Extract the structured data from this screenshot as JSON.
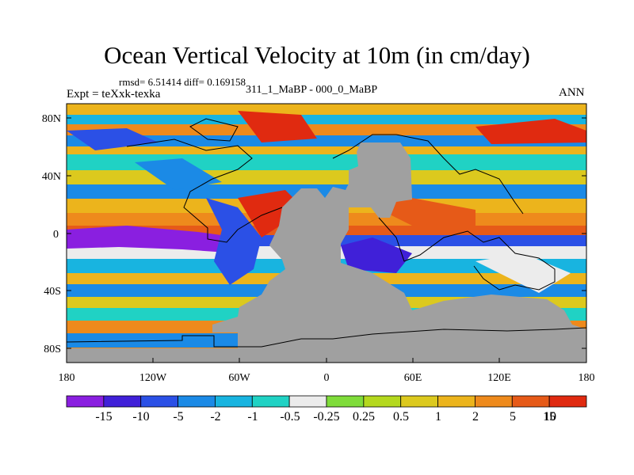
{
  "figure": {
    "title": "Ocean Vertical Velocity at 10m (in cm/day)",
    "stats": "rmsd= 6.51414 diff= 0.169158",
    "left_label": "Expt = teXxk-texka",
    "center_label": "311_1_MaBP - 000_0_MaBP",
    "right_label": "ANN"
  },
  "map": {
    "projection": "cylindrical-equidistant",
    "lon_range": [
      -180,
      180
    ],
    "lat_range": [
      -90,
      90
    ],
    "x_tick_labels": [
      "180",
      "120W",
      "60W",
      "0",
      "60E",
      "120E",
      "180"
    ],
    "y_tick_labels": [
      "80N",
      "40N",
      "0",
      "40S",
      "80S"
    ],
    "land_fill_color": "#a0a0a0",
    "coastline_color": "#000000"
  },
  "colorbar": {
    "orientation": "horizontal",
    "colors": [
      "#8a1fe0",
      "#4020d8",
      "#2b50e6",
      "#1b8ae6",
      "#18b4e0",
      "#20d2c4",
      "#ececec",
      "#7fdc3a",
      "#b4d81e",
      "#dcc91e",
      "#ecb41c",
      "#ee8a1c",
      "#e65a18",
      "#e02a10"
    ],
    "labels": [
      "-15",
      "-10",
      "-5",
      "-2",
      "-1",
      "-0.5",
      "-0.25",
      "0.25",
      "0.5",
      "1",
      "2",
      "5",
      "10",
      "15"
    ]
  }
}
